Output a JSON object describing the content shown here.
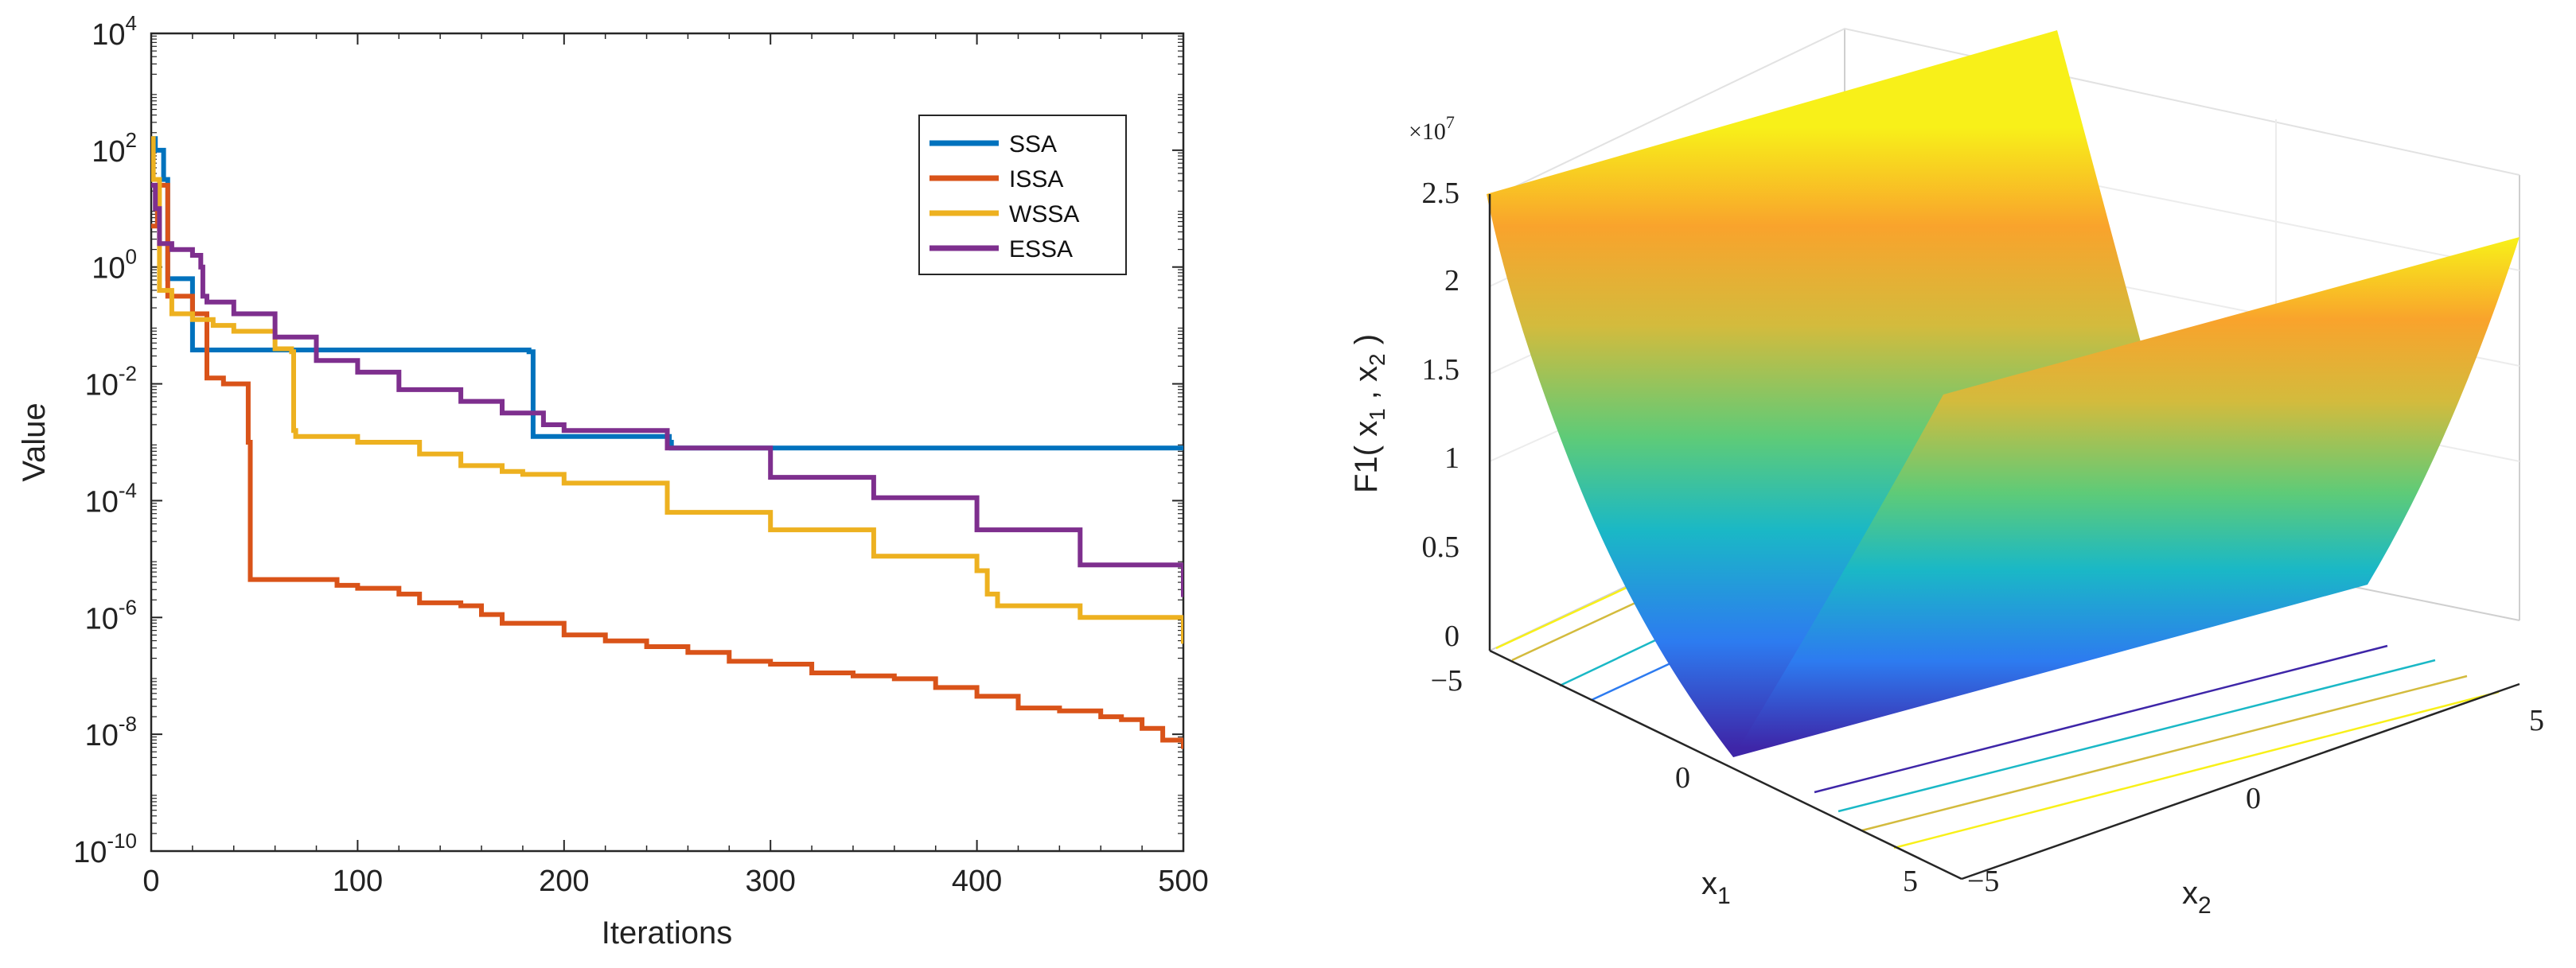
{
  "chart_data": [
    {
      "type": "line",
      "title": "",
      "xlabel": "Iterations",
      "ylabel": "Value",
      "xlim": [
        0,
        500
      ],
      "ylim_log10": [
        -10,
        4
      ],
      "yscale": "log",
      "x_ticks": [
        "0",
        "100",
        "200",
        "300",
        "400",
        "500"
      ],
      "x_tick_values": [
        0,
        100,
        200,
        300,
        400,
        500
      ],
      "y_tick_base": "10",
      "y_tick_exponents": [
        "4",
        "2",
        "0",
        "-2",
        "-4",
        "-6",
        "-8",
        "-10"
      ],
      "legend": [
        "SSA",
        "ISSA",
        "WSSA",
        "ESSA"
      ],
      "legend_position": "top-right",
      "grid": false,
      "series": [
        {
          "name": "SSA",
          "color": "#0072BD",
          "x": [
            0,
            2,
            6,
            8,
            10,
            19,
            20,
            50,
            100,
            150,
            183,
            184,
            185,
            200,
            250,
            251,
            252,
            260,
            300,
            400,
            500
          ],
          "log10_values": [
            2.2,
            2.0,
            1.5,
            -0.2,
            -0.2,
            -0.2,
            -1.42,
            -1.42,
            -1.42,
            -1.42,
            -1.45,
            -1.45,
            -2.9,
            -2.9,
            -2.9,
            -3.0,
            -3.1,
            -3.1,
            -3.1,
            -3.1,
            -3.1
          ]
        },
        {
          "name": "ISSA",
          "color": "#D95319",
          "x": [
            0,
            3,
            6,
            8,
            14,
            20,
            25,
            27,
            30,
            35,
            45,
            47,
            48,
            50,
            60,
            70,
            80,
            90,
            100,
            120,
            130,
            150,
            160,
            170,
            180,
            200,
            220,
            240,
            260,
            280,
            300,
            320,
            340,
            360,
            380,
            400,
            420,
            440,
            460,
            470,
            480,
            490,
            500
          ],
          "log10_values": [
            0.7,
            1.4,
            1.4,
            -0.5,
            -0.5,
            -0.8,
            -0.8,
            -1.9,
            -1.9,
            -2.0,
            -2.0,
            -3.0,
            -5.35,
            -5.35,
            -5.35,
            -5.35,
            -5.35,
            -5.45,
            -5.5,
            -5.6,
            -5.75,
            -5.8,
            -5.95,
            -6.1,
            -6.1,
            -6.3,
            -6.4,
            -6.5,
            -6.6,
            -6.75,
            -6.8,
            -6.95,
            -7.0,
            -7.05,
            -7.2,
            -7.35,
            -7.55,
            -7.6,
            -7.7,
            -7.75,
            -7.9,
            -8.1,
            -8.25
          ]
        },
        {
          "name": "WSSA",
          "color": "#EDB120",
          "x": [
            0,
            1,
            4,
            10,
            20,
            30,
            40,
            60,
            68,
            69,
            70,
            100,
            130,
            150,
            170,
            180,
            200,
            250,
            300,
            350,
            400,
            405,
            410,
            450,
            500
          ],
          "log10_values": [
            2.2,
            1.5,
            -0.4,
            -0.8,
            -0.9,
            -1.0,
            -1.1,
            -1.4,
            -1.45,
            -2.8,
            -2.9,
            -3.0,
            -3.2,
            -3.4,
            -3.5,
            -3.55,
            -3.7,
            -4.2,
            -4.5,
            -4.95,
            -5.2,
            -5.6,
            -5.8,
            -6.0,
            -6.45
          ]
        },
        {
          "name": "ESSA",
          "color": "#7E2F8E",
          "x": [
            0,
            2,
            4,
            10,
            20,
            24,
            25,
            27,
            40,
            60,
            80,
            100,
            120,
            150,
            170,
            190,
            200,
            250,
            300,
            350,
            400,
            450,
            500
          ],
          "log10_values": [
            1.4,
            1.0,
            0.4,
            0.3,
            0.2,
            0.0,
            -0.5,
            -0.6,
            -0.8,
            -1.2,
            -1.6,
            -1.8,
            -2.1,
            -2.3,
            -2.5,
            -2.7,
            -2.8,
            -3.1,
            -3.6,
            -3.95,
            -4.5,
            -5.1,
            -5.65
          ]
        }
      ]
    },
    {
      "type": "surface3d",
      "title": "",
      "xlabel_base": "x",
      "xlabel_sub": "1",
      "ylabel_base": "x",
      "ylabel_sub": "2",
      "zlabel": "F1( x",
      "zlabel_sub1": "1",
      "zlabel_mid": " , x",
      "zlabel_sub2": "2",
      "zlabel_end": " )",
      "exponent_base": "×10",
      "exponent_power": "7",
      "x1_range": [
        -5,
        5
      ],
      "x2_range": [
        -5,
        5
      ],
      "zlim": [
        0,
        2.5
      ],
      "x1_ticks": [
        "−5",
        "0",
        "5"
      ],
      "x2_ticks": [
        "−5",
        "0",
        "5"
      ],
      "z_ticks": [
        "0",
        "0.5",
        "1",
        "1.5",
        "2",
        "2.5"
      ],
      "colormap": [
        "#3E26A8",
        "#2D7BF0",
        "#1AB8C6",
        "#5ECB78",
        "#D3BB3D",
        "#F9A32C",
        "#F8F019"
      ]
    }
  ]
}
